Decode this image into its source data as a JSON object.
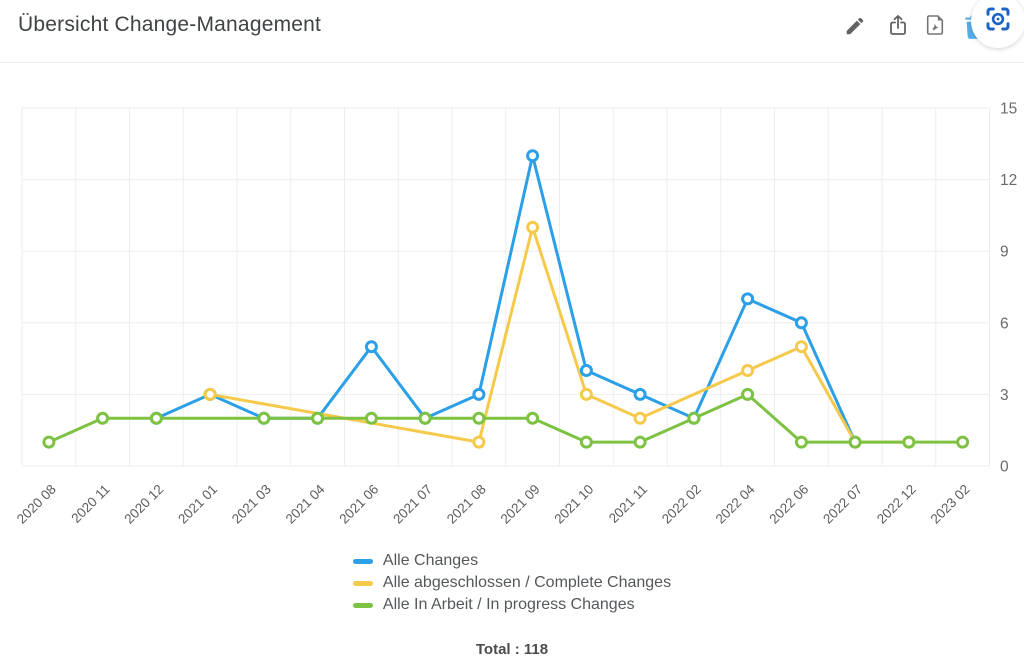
{
  "header": {
    "title": "Übersicht Change-Management",
    "actions": [
      {
        "label": "edit",
        "icon": "pencil-icon"
      },
      {
        "label": "export",
        "icon": "share-icon"
      },
      {
        "label": "pdf-download",
        "icon": "pdf-icon"
      },
      {
        "label": "delete",
        "icon": "trash-icon"
      },
      {
        "label": "screenshot-region",
        "icon": "screenshot-region-icon"
      }
    ]
  },
  "chart_data": {
    "type": "line",
    "title": "Übersicht Change-Management",
    "categories": [
      "2020 08",
      "2020 11",
      "2020 12",
      "2021 01",
      "2021 03",
      "2021 04",
      "2021 06",
      "2021 07",
      "2021 08",
      "2021 09",
      "2021 10",
      "2021 11",
      "2022 02",
      "2022 04",
      "2022 06",
      "2022 07",
      "2022 12",
      "2023 02"
    ],
    "series": [
      {
        "name": "Alle Changes",
        "color": "#2b9fe8",
        "values": [
          null,
          null,
          2,
          3,
          2,
          2,
          5,
          2,
          3,
          13,
          4,
          3,
          2,
          7,
          6,
          1,
          null,
          null
        ]
      },
      {
        "name": "Alle abgeschlossen / Complete Changes",
        "color": "#f5c94a",
        "values": [
          null,
          null,
          null,
          3,
          null,
          null,
          null,
          null,
          1,
          10,
          3,
          2,
          null,
          4,
          5,
          1,
          1,
          null
        ]
      },
      {
        "name": "Alle In Arbeit / In progress Changes",
        "color": "#7dc242",
        "values": [
          1,
          2,
          2,
          null,
          2,
          2,
          2,
          2,
          2,
          2,
          1,
          1,
          2,
          3,
          1,
          1,
          1,
          1
        ]
      }
    ],
    "ylim": [
      0,
      15
    ],
    "yticks": [
      0,
      3,
      6,
      9,
      12,
      15
    ],
    "grid": true,
    "legend_position": "bottom",
    "marker": "circle"
  },
  "footer": {
    "total_label": "Total : 118"
  },
  "colors": {
    "line_blue": "#2b9fe8",
    "line_yellow": "#f5c94a",
    "line_green": "#7dc242",
    "icon_gray": "#616161",
    "trash_blue": "#58aee9",
    "screenshot_blue": "#1b63c5",
    "grid_gray": "#ededed"
  }
}
